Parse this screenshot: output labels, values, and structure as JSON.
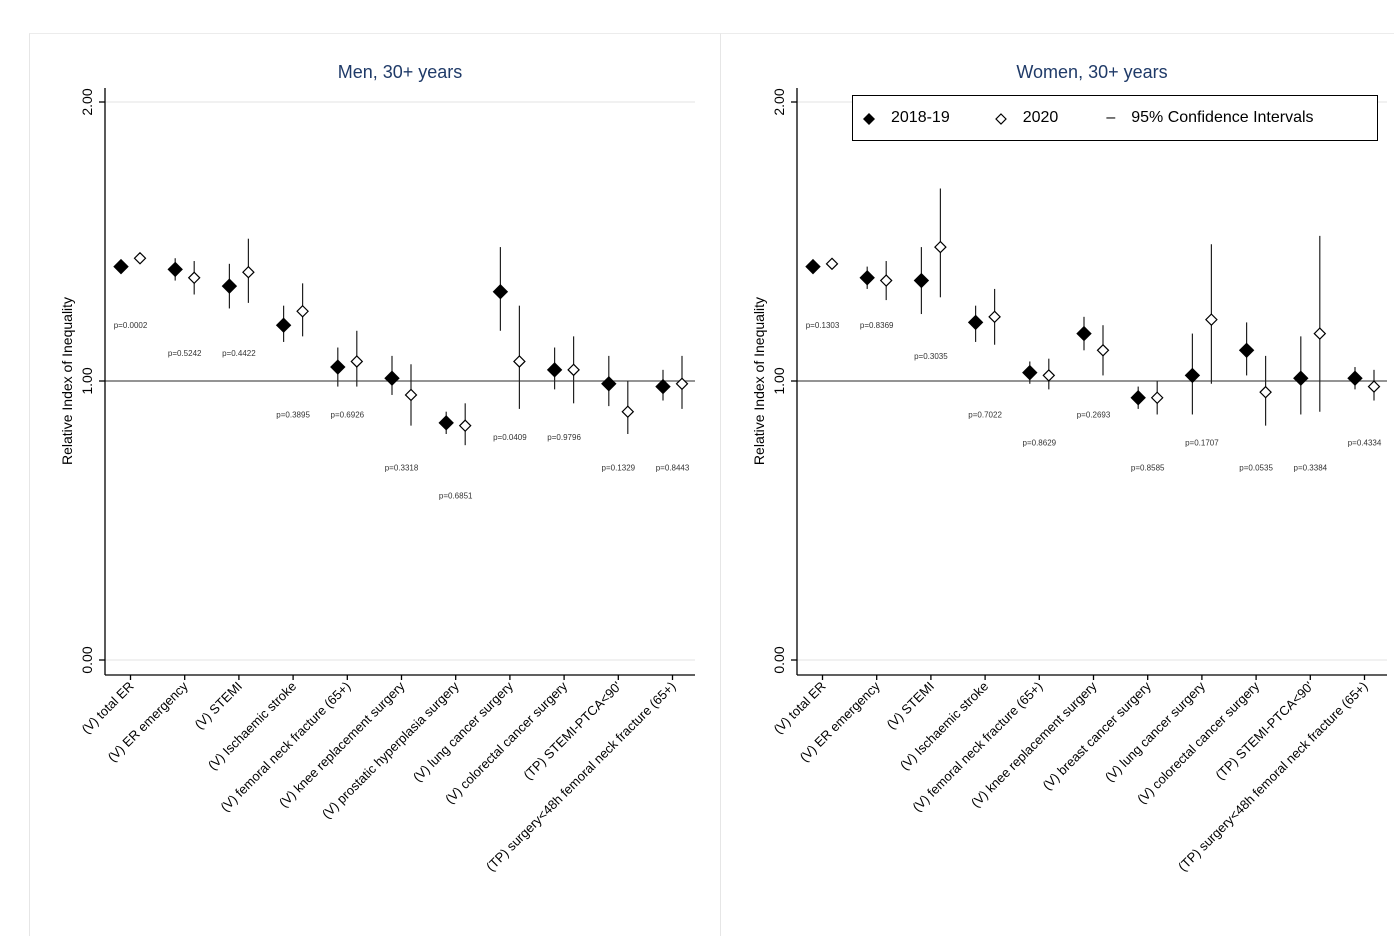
{
  "legend": {
    "filled_label": "2018-19",
    "hollow_label": "2020",
    "ci_symbol": "–",
    "ci_label": "95% Confidence Intervals"
  },
  "colors": {
    "title": "#1f3a68",
    "marker": "#000000",
    "reference_line": "#555555"
  },
  "chart_data": [
    {
      "type": "scatter",
      "title": "Men, 30+ years",
      "ylabel": "Relative Index of Inequality",
      "xlabel": "",
      "ylim": [
        0,
        2
      ],
      "yticks": [
        "0.00",
        "1.00",
        "2.00"
      ],
      "reference_line": 1.0,
      "grid": true,
      "categories": [
        "(V) total ER",
        "(V) ER emergency",
        "(V) STEMI",
        "(V) Ischaemic stroke",
        "(V) femoral neck fracture (65+)",
        "(V) knee replacement surgery",
        "(V) prostatic hyperplasia surgery",
        "(V) lung cancer surgery",
        "(V) colorectal cancer surgery",
        "(TP) STEMI-PTCA<90'",
        "(TP) surgery<48h femoral neck fracture (65+)"
      ],
      "series": [
        {
          "name": "2018-19",
          "values": [
            1.41,
            1.4,
            1.34,
            1.2,
            1.05,
            1.01,
            0.85,
            1.32,
            1.04,
            0.99,
            0.98
          ],
          "ci_low": [
            1.41,
            1.36,
            1.26,
            1.14,
            0.98,
            0.95,
            0.81,
            1.18,
            0.97,
            0.91,
            0.93
          ],
          "ci_high": [
            1.41,
            1.44,
            1.42,
            1.27,
            1.12,
            1.09,
            0.89,
            1.48,
            1.12,
            1.09,
            1.04
          ]
        },
        {
          "name": "2020",
          "values": [
            1.44,
            1.37,
            1.39,
            1.25,
            1.07,
            0.95,
            0.84,
            1.07,
            1.04,
            0.89,
            0.99
          ],
          "ci_low": [
            1.44,
            1.31,
            1.28,
            1.16,
            0.98,
            0.84,
            0.77,
            0.9,
            0.92,
            0.81,
            0.9
          ],
          "ci_high": [
            1.44,
            1.43,
            1.51,
            1.35,
            1.18,
            1.06,
            0.92,
            1.27,
            1.16,
            1.0,
            1.09
          ]
        }
      ],
      "p_values": [
        "p=0.0002",
        "p=0.5242",
        "p=0.4422",
        "p=0.3895",
        "p=0.6926",
        "p=0.3318",
        "p=0.6851",
        "p=0.0409",
        "p=0.9796",
        "p=0.1329",
        "p=0.8443"
      ],
      "p_value_y": [
        1.2,
        1.1,
        1.1,
        0.88,
        0.88,
        0.69,
        0.59,
        0.8,
        0.8,
        0.69,
        0.69
      ]
    },
    {
      "type": "scatter",
      "title": "Women, 30+ years",
      "ylabel": "Relative Index of Inequality",
      "xlabel": "",
      "ylim": [
        0,
        2
      ],
      "yticks": [
        "0.00",
        "1.00",
        "2.00"
      ],
      "reference_line": 1.0,
      "grid": true,
      "legend_position": "top-right",
      "categories": [
        "(V) total ER",
        "(V) ER emergency",
        "(V) STEMI",
        "(V) Ischaemic stroke",
        "(V) femoral neck fracture (65+)",
        "(V) knee replacement surgery",
        "(V) breast cancer surgery",
        "(V) lung cancer surgery",
        "(V) colorectal cancer surgery",
        "(TP) STEMI-PTCA<90'",
        "(TP) surgery<48h femoral neck fracture (65+)"
      ],
      "series": [
        {
          "name": "2018-19",
          "values": [
            1.41,
            1.37,
            1.36,
            1.21,
            1.03,
            1.17,
            0.94,
            1.02,
            1.11,
            1.01,
            1.01
          ],
          "ci_low": [
            1.41,
            1.33,
            1.24,
            1.14,
            0.99,
            1.11,
            0.9,
            0.88,
            1.02,
            0.88,
            0.97
          ],
          "ci_high": [
            1.41,
            1.41,
            1.48,
            1.27,
            1.07,
            1.23,
            0.98,
            1.17,
            1.21,
            1.16,
            1.05
          ]
        },
        {
          "name": "2020",
          "values": [
            1.42,
            1.36,
            1.48,
            1.23,
            1.02,
            1.11,
            0.94,
            1.22,
            0.96,
            1.17,
            0.98
          ],
          "ci_low": [
            1.42,
            1.29,
            1.3,
            1.13,
            0.97,
            1.02,
            0.88,
            0.99,
            0.84,
            0.89,
            0.93
          ],
          "ci_high": [
            1.42,
            1.43,
            1.69,
            1.33,
            1.08,
            1.2,
            1.0,
            1.49,
            1.09,
            1.52,
            1.04
          ]
        }
      ],
      "p_values": [
        "p=0.1303",
        "p=0.8369",
        "p=0.3035",
        "p=0.7022",
        "p=0.8629",
        "p=0.2693",
        "p=0.8585",
        "p=0.1707",
        "p=0.0535",
        "p=0.3384",
        "p=0.4334"
      ],
      "p_value_y": [
        1.2,
        1.2,
        1.09,
        0.88,
        0.78,
        0.88,
        0.69,
        0.78,
        0.69,
        0.69,
        0.78
      ]
    }
  ]
}
